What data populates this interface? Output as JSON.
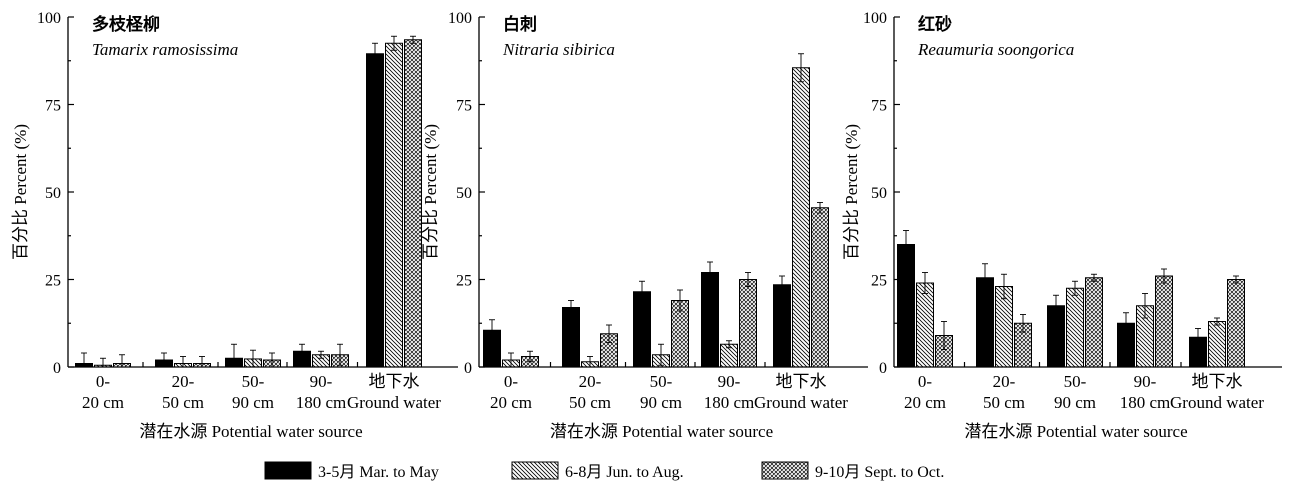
{
  "chart_data": [
    {
      "type": "bar",
      "title": "多枝柽柳",
      "subtitle": "Tamarix ramosissima",
      "ylabel": "百分比 Percent (%)",
      "xlabel": "潜在水源 Potential water source",
      "ylim": [
        0,
        100
      ],
      "yticks": [
        "0",
        "25",
        "50",
        "75",
        "100"
      ],
      "categories": [
        [
          "0-",
          "20 cm"
        ],
        [
          "20-",
          "50 cm"
        ],
        [
          "50-",
          "90 cm"
        ],
        [
          "90-",
          "180 cm"
        ],
        [
          "地下水",
          "Ground water"
        ]
      ],
      "series": [
        {
          "name": "3-5月 Mar. to May",
          "values": [
            1.0,
            2.0,
            2.5,
            4.5,
            89.5
          ],
          "errors": [
            3.0,
            2.0,
            4.0,
            2.0,
            3.0
          ]
        },
        {
          "name": "6-8月 Jun. to Aug.",
          "values": [
            0.5,
            1.0,
            2.3,
            3.5,
            92.5
          ],
          "errors": [
            2.0,
            2.0,
            2.5,
            1.0,
            2.0
          ]
        },
        {
          "name": "9-10月 Sept. to Oct.",
          "values": [
            1.0,
            1.0,
            2.0,
            3.5,
            93.5
          ],
          "errors": [
            2.5,
            2.0,
            2.0,
            3.0,
            1.0
          ]
        }
      ]
    },
    {
      "type": "bar",
      "title": "白刺",
      "subtitle": "Nitraria sibirica",
      "ylabel": "百分比 Percent (%)",
      "xlabel": "潜在水源 Potential water source",
      "ylim": [
        0,
        100
      ],
      "yticks": [
        "0",
        "25",
        "50",
        "75",
        "100"
      ],
      "categories": [
        [
          "0-",
          "20 cm"
        ],
        [
          "20-",
          "50 cm"
        ],
        [
          "50-",
          "90 cm"
        ],
        [
          "90-",
          "180 cm"
        ],
        [
          "地下水",
          "Ground water"
        ]
      ],
      "series": [
        {
          "name": "3-5月 Mar. to May",
          "values": [
            10.5,
            17.0,
            21.5,
            27.0,
            23.5
          ],
          "errors": [
            3.0,
            2.0,
            3.0,
            3.0,
            2.5
          ]
        },
        {
          "name": "6-8月 Jun. to Aug.",
          "values": [
            2.0,
            1.5,
            3.5,
            6.5,
            85.5
          ],
          "errors": [
            2.0,
            1.5,
            3.0,
            1.0,
            4.0
          ]
        },
        {
          "name": "9-10月 Sept. to Oct.",
          "values": [
            3.0,
            9.5,
            19.0,
            25.0,
            45.5
          ],
          "errors": [
            1.5,
            2.5,
            3.0,
            2.0,
            1.5
          ]
        }
      ]
    },
    {
      "type": "bar",
      "title": "红砂",
      "subtitle": "Reaumuria soongorica",
      "ylabel": "百分比 Percent (%)",
      "xlabel": "潜在水源 Potential water source",
      "ylim": [
        0,
        100
      ],
      "yticks": [
        "0",
        "25",
        "50",
        "75",
        "100"
      ],
      "categories": [
        [
          "0-",
          "20 cm"
        ],
        [
          "20-",
          "50 cm"
        ],
        [
          "50-",
          "90 cm"
        ],
        [
          "90-",
          "180 cm"
        ],
        [
          "地下水",
          "Ground water"
        ]
      ],
      "series": [
        {
          "name": "3-5月 Mar. to May",
          "values": [
            35.0,
            25.5,
            17.5,
            12.5,
            8.5
          ],
          "errors": [
            4.0,
            4.0,
            3.0,
            3.0,
            2.5
          ]
        },
        {
          "name": "6-8月 Jun. to Aug.",
          "values": [
            24.0,
            23.0,
            22.5,
            17.5,
            13.0
          ],
          "errors": [
            3.0,
            3.5,
            2.0,
            3.5,
            1.0
          ]
        },
        {
          "name": "9-10月 Sept. to Oct.",
          "values": [
            9.0,
            12.5,
            25.5,
            26.0,
            25.0
          ],
          "errors": [
            4.0,
            2.5,
            1.0,
            2.0,
            1.0
          ]
        }
      ]
    }
  ],
  "legend": [
    {
      "label": "3-5月  Mar. to May",
      "pattern": "solid"
    },
    {
      "label": "6-8月  Jun. to Aug.",
      "pattern": "diagonal"
    },
    {
      "label": "9-10月  Sept. to Oct.",
      "pattern": "crosshatch"
    }
  ],
  "legend_placement": "bottom-center",
  "grid": false,
  "colors": {
    "bar_solid": "#000000",
    "hatch": "#000000",
    "background": "#ffffff"
  }
}
